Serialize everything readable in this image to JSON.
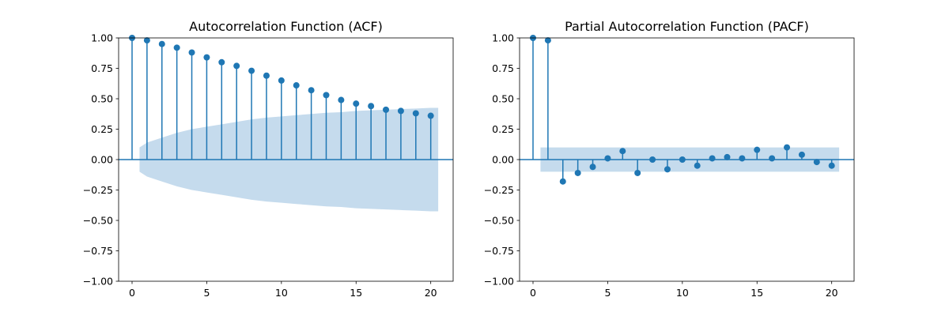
{
  "colors": {
    "stem": "#1f77b4",
    "band": "#c5dbed",
    "zero_line": "#1f77b4"
  },
  "chart_data": [
    {
      "type": "stem",
      "title": "Autocorrelation Function (ACF)",
      "xlabel": "",
      "ylabel": "",
      "xlim": [
        -0.9,
        21.5
      ],
      "ylim": [
        -1.0,
        1.0
      ],
      "xticks": [
        0,
        5,
        10,
        15,
        20
      ],
      "xtick_labels": [
        "0",
        "5",
        "10",
        "15",
        "20"
      ],
      "yticks": [
        1.0,
        0.75,
        0.5,
        0.25,
        0.0,
        -0.25,
        -0.5,
        -0.75,
        -1.0
      ],
      "ytick_labels": [
        "1.00",
        "0.75",
        "0.50",
        "0.25",
        "0.00",
        "−0.25",
        "−0.50",
        "−0.75",
        "−1.00"
      ],
      "lags": [
        0,
        1,
        2,
        3,
        4,
        5,
        6,
        7,
        8,
        9,
        10,
        11,
        12,
        13,
        14,
        15,
        16,
        17,
        18,
        19,
        20
      ],
      "values": [
        1.0,
        0.98,
        0.95,
        0.92,
        0.88,
        0.84,
        0.8,
        0.77,
        0.73,
        0.69,
        0.65,
        0.61,
        0.57,
        0.53,
        0.49,
        0.46,
        0.44,
        0.41,
        0.4,
        0.38,
        0.36
      ],
      "confidence_band": {
        "lags": [
          0.5,
          1,
          2,
          3,
          4,
          5,
          6,
          7,
          8,
          9,
          10,
          11,
          12,
          13,
          14,
          15,
          16,
          17,
          18,
          19,
          20,
          20.5
        ],
        "upper": [
          0.1,
          0.14,
          0.18,
          0.22,
          0.25,
          0.27,
          0.29,
          0.31,
          0.33,
          0.345,
          0.355,
          0.365,
          0.375,
          0.385,
          0.39,
          0.4,
          0.405,
          0.41,
          0.415,
          0.42,
          0.425,
          0.425
        ]
      }
    },
    {
      "type": "stem",
      "title": "Partial Autocorrelation Function (PACF)",
      "xlabel": "",
      "ylabel": "",
      "xlim": [
        -0.9,
        21.5
      ],
      "ylim": [
        -1.0,
        1.0
      ],
      "xticks": [
        0,
        5,
        10,
        15,
        20
      ],
      "xtick_labels": [
        "0",
        "5",
        "10",
        "15",
        "20"
      ],
      "yticks": [
        1.0,
        0.75,
        0.5,
        0.25,
        0.0,
        -0.25,
        -0.5,
        -0.75,
        -1.0
      ],
      "ytick_labels": [
        "1.00",
        "0.75",
        "0.50",
        "0.25",
        "0.00",
        "−0.25",
        "−0.50",
        "−0.75",
        "−1.00"
      ],
      "lags": [
        0,
        1,
        2,
        3,
        4,
        5,
        6,
        7,
        8,
        9,
        10,
        11,
        12,
        13,
        14,
        15,
        16,
        17,
        18,
        19,
        20
      ],
      "values": [
        1.0,
        0.98,
        -0.18,
        -0.11,
        -0.06,
        0.01,
        0.07,
        -0.11,
        0.0,
        -0.08,
        0.0,
        -0.05,
        0.01,
        0.02,
        0.01,
        0.08,
        0.01,
        0.1,
        0.04,
        -0.02,
        -0.05
      ],
      "confidence_band": {
        "lags": [
          0.5,
          20.5
        ],
        "upper": [
          0.1,
          0.1
        ]
      }
    }
  ]
}
